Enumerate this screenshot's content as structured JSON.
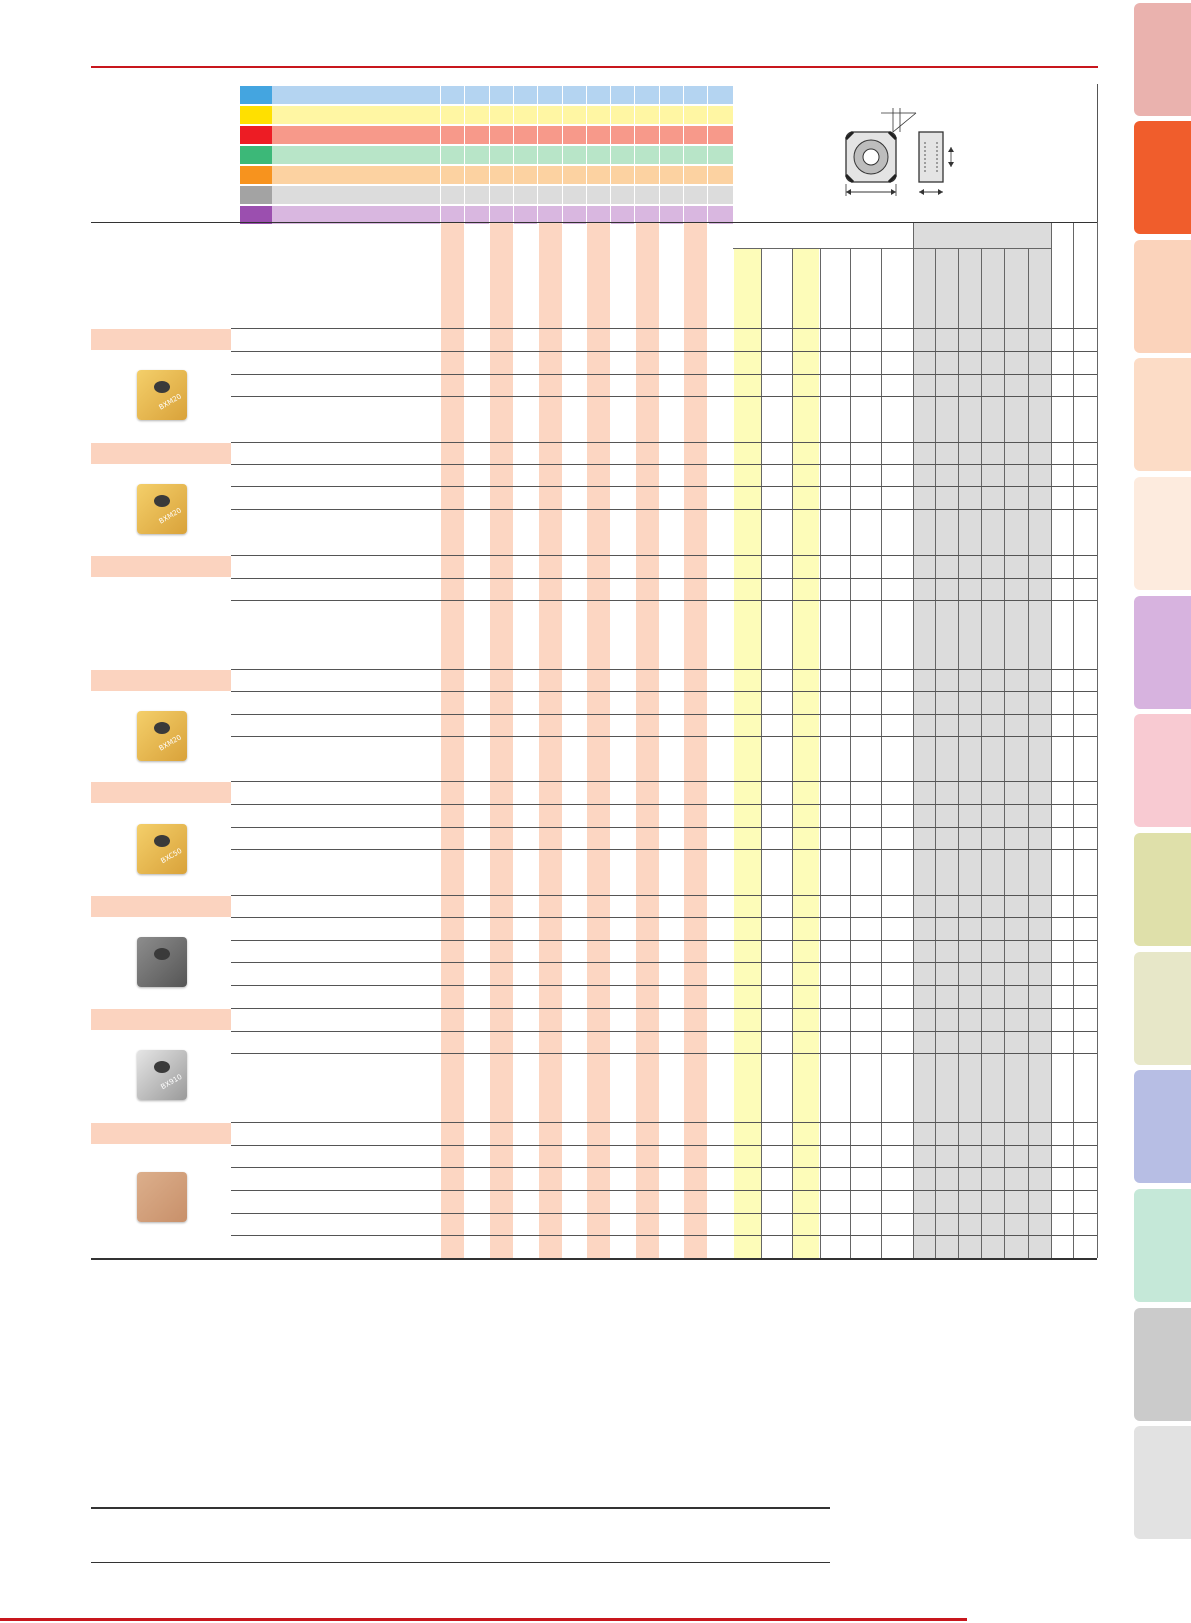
{
  "side_tabs": [
    {
      "color": "#eab2ae"
    },
    {
      "color": "#f05d2c"
    },
    {
      "color": "#fbd3bb"
    },
    {
      "color": "#fcdcc6"
    },
    {
      "color": "#fdebde"
    },
    {
      "color": "#d7b3df"
    },
    {
      "color": "#f8cad2"
    },
    {
      "color": "#dfe0aa"
    },
    {
      "color": "#e7e7c8"
    },
    {
      "color": "#b7bee4"
    },
    {
      "color": "#c5e8d8"
    },
    {
      "color": "#cbcbcb"
    },
    {
      "color": "#e2e2e2"
    }
  ],
  "material_legend": [
    {
      "color": "#44a5e0",
      "band": "#b4d4f1"
    },
    {
      "color": "#ffe000",
      "band": "#fff6a3"
    },
    {
      "color": "#ed1c24",
      "band": "#f7998a"
    },
    {
      "color": "#3cb878",
      "band": "#b8e5c8"
    },
    {
      "color": "#f7931e",
      "band": "#fcd2a1"
    },
    {
      "color": "#a3a3a3",
      "band": "#dcdcdc"
    },
    {
      "color": "#9b4faf",
      "band": "#d9b7e0"
    }
  ],
  "insert_groups": [
    {
      "label": "BXM20"
    },
    {
      "label": "BXM20"
    },
    {
      "label": ""
    },
    {
      "label": "BXM20"
    },
    {
      "label": "BXC50"
    },
    {
      "label": ""
    },
    {
      "label": "BX910"
    },
    {
      "label": ""
    }
  ],
  "colors": {
    "accent_red": "#c8161d",
    "column_peach": "#fcd6c2",
    "column_yellow": "#fdfcb9",
    "column_gray": "#dcdcdc",
    "group_header": "#fbd3bf"
  }
}
